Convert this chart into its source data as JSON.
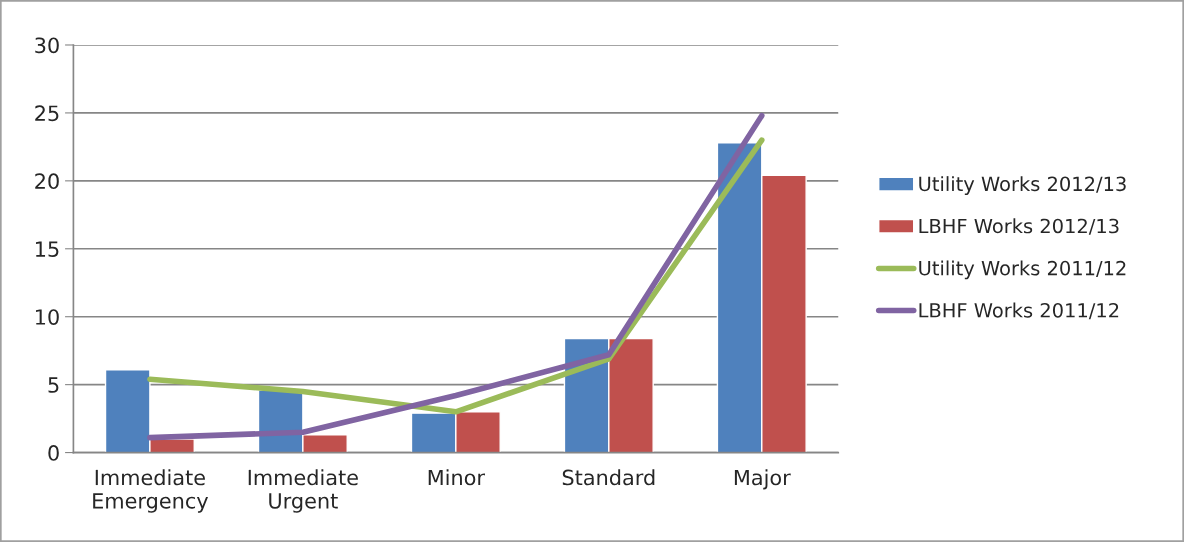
{
  "chart_data": {
    "type": "bar",
    "categories": [
      "Immediate\nEmergency",
      "Immediate\nUrgent",
      "Minor",
      "Standard",
      "Major"
    ],
    "series": [
      {
        "name": "Utility Works 2012/13",
        "color": "#4f81bd",
        "values": [
          6.1,
          4.6,
          2.9,
          8.4,
          22.8
        ]
      },
      {
        "name": "LBHF Works 2012/13",
        "color": "#c0504d",
        "values": [
          1.0,
          1.3,
          3.0,
          8.4,
          20.4
        ]
      },
      {
        "name": "Utility Works 2011/12",
        "type": "line",
        "color": "#9bbb59",
        "values": [
          5.4,
          4.5,
          3.0,
          6.9,
          23.0
        ]
      },
      {
        "name": "LBHF Works 2011/12",
        "type": "line",
        "color": "#8064a2",
        "values": [
          1.1,
          1.5,
          4.2,
          7.2,
          24.8
        ]
      }
    ],
    "ylim": [
      0,
      30
    ],
    "yticks": [
      0,
      5,
      10,
      15,
      20,
      25,
      30
    ],
    "grid": "y",
    "legend": "right"
  }
}
